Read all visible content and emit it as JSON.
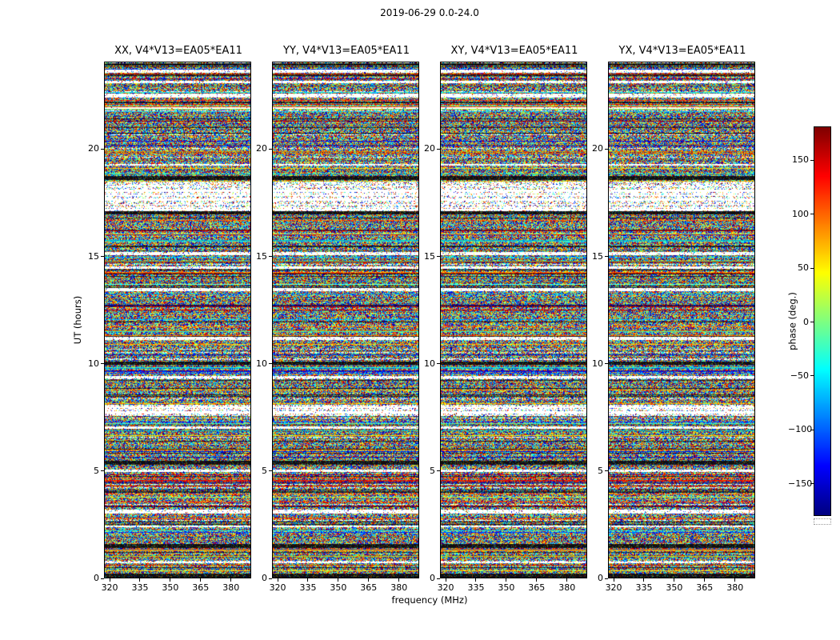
{
  "figure": {
    "suptitle": "2019-06-29 0.0-24.0",
    "background": "#ffffff"
  },
  "chart_data": {
    "type": "heatmap",
    "description": "Four waterfall plots of interferometric visibility phase versus frequency (x) and UT time (y) for polarization products XX, YY, XY, YX of baseline V4*V13 = EA05*EA11. Pixel values are noise-like phases uniformly distributed in [-180, 180] degrees rendered with a jet colormap; horizontal white (flagged) bands and dark bands occur at identical UT ranges in all four panels.",
    "panels": [
      {
        "id": "XX",
        "title": "XX, V4*V13=EA05*EA11",
        "seed": 101
      },
      {
        "id": "YY",
        "title": "YY, V4*V13=EA05*EA11",
        "seed": 202
      },
      {
        "id": "XY",
        "title": "XY, V4*V13=EA05*EA11",
        "seed": 303
      },
      {
        "id": "YX",
        "title": "YX, V4*V13=EA05*EA11",
        "seed": 404
      }
    ],
    "x_axis": {
      "label": "frequency (MHz)",
      "range": [
        318,
        390
      ],
      "ticks": [
        320,
        335,
        350,
        365,
        380
      ]
    },
    "y_axis": {
      "label": "UT (hours)",
      "range": [
        0,
        24
      ],
      "ticks": [
        0,
        5,
        10,
        15,
        20
      ]
    },
    "colorbar": {
      "label": "phase (deg.)",
      "range": [
        -180,
        180
      ],
      "ticks": [
        150,
        100,
        50,
        0,
        -50,
        -100,
        -150
      ],
      "colormap": "jet",
      "colormap_stops": [
        "#00007f",
        "#0000ff",
        "#00ffff",
        "#80ff80",
        "#ffff00",
        "#ff0000",
        "#800000"
      ]
    },
    "value_distribution": "uniform random phase noise in [-180, 180] deg",
    "flag_bands": [
      {
        "ut": [
          23.88,
          24.0
        ],
        "type": "dark"
      },
      {
        "ut": [
          23.55,
          23.68
        ],
        "type": "white"
      },
      {
        "ut": [
          23.05,
          23.15
        ],
        "type": "white"
      },
      {
        "ut": [
          22.38,
          22.55
        ],
        "type": "white"
      },
      {
        "ut": [
          21.85,
          21.95
        ],
        "type": "white"
      },
      {
        "ut": [
          19.2,
          19.28
        ],
        "type": "white"
      },
      {
        "ut": [
          18.55,
          18.72
        ],
        "type": "dark"
      },
      {
        "ut": [
          18.3,
          18.45
        ],
        "type": "sparse"
      },
      {
        "ut": [
          17.1,
          18.3
        ],
        "type": "sparse"
      },
      {
        "ut": [
          16.95,
          17.1
        ],
        "type": "dark"
      },
      {
        "ut": [
          15.05,
          15.2
        ],
        "type": "white"
      },
      {
        "ut": [
          14.4,
          14.5
        ],
        "type": "white"
      },
      {
        "ut": [
          13.35,
          13.5
        ],
        "type": "white"
      },
      {
        "ut": [
          11.1,
          11.22
        ],
        "type": "white"
      },
      {
        "ut": [
          9.95,
          10.08
        ],
        "type": "dark"
      },
      {
        "ut": [
          9.3,
          9.42
        ],
        "type": "white"
      },
      {
        "ut": [
          7.55,
          8.05
        ],
        "type": "sparse"
      },
      {
        "ut": [
          6.95,
          7.05
        ],
        "type": "white"
      },
      {
        "ut": [
          5.32,
          5.45
        ],
        "type": "dark"
      },
      {
        "ut": [
          4.95,
          5.05
        ],
        "type": "white"
      },
      {
        "ut": [
          3.0,
          3.18
        ],
        "type": "white"
      },
      {
        "ut": [
          2.35,
          2.45
        ],
        "type": "white"
      },
      {
        "ut": [
          1.4,
          1.58
        ],
        "type": "dark"
      },
      {
        "ut": [
          0.68,
          0.78
        ],
        "type": "white"
      },
      {
        "ut": [
          0.0,
          0.22
        ],
        "type": "dark"
      }
    ]
  }
}
